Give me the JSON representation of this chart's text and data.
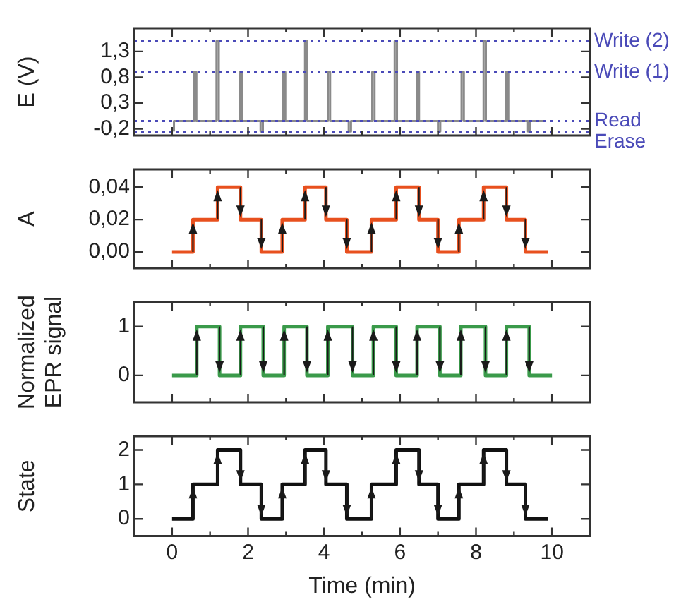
{
  "chart_data": [
    {
      "type": "line",
      "ylabel": "E (V)",
      "xlim": [
        -1,
        11
      ],
      "ylim": [
        -0.33,
        1.75
      ],
      "tick_labels": "y",
      "xticks": [
        0,
        {
          "value": 1,
          "label": null
        },
        2,
        {
          "value": 3,
          "label": null
        },
        4,
        {
          "value": 5,
          "label": null
        },
        6,
        {
          "value": 7,
          "label": null
        },
        8,
        {
          "value": 9,
          "label": null
        },
        10
      ],
      "yticks": [
        {
          "value": -0.2,
          "label": "-0,2"
        },
        {
          "value": 0.3,
          "label": "0,3"
        },
        {
          "value": 0.8,
          "label": "0,8"
        },
        {
          "value": 1.3,
          "label": "1,3"
        }
      ],
      "x": [
        0.05,
        0.05,
        0.58,
        0.58,
        0.64,
        0.64,
        1.17,
        1.17,
        1.23,
        1.23,
        1.78,
        1.78,
        1.84,
        1.84,
        2.33,
        2.33,
        2.39,
        2.39,
        2.92,
        2.92,
        2.98,
        2.98,
        3.5,
        3.5,
        3.56,
        3.56,
        4.1,
        4.1,
        4.16,
        4.16,
        4.65,
        4.65,
        4.71,
        4.71,
        5.27,
        5.27,
        5.33,
        5.33,
        5.86,
        5.86,
        5.92,
        5.92,
        6.44,
        6.44,
        6.5,
        6.5,
        7.0,
        7.0,
        7.06,
        7.06,
        7.62,
        7.62,
        7.68,
        7.68,
        8.2,
        8.2,
        8.26,
        8.26,
        8.79,
        8.79,
        8.85,
        8.85,
        9.37,
        9.37,
        9.43,
        9.43,
        9.84
      ],
      "series": [
        {
          "color": "#8a8a8a",
          "values": [
            -0.25,
            -0.05,
            -0.05,
            0.9,
            0.9,
            -0.05,
            -0.05,
            1.5,
            1.5,
            -0.05,
            -0.05,
            0.9,
            0.9,
            -0.05,
            -0.05,
            -0.25,
            -0.25,
            -0.05,
            -0.05,
            0.9,
            0.9,
            -0.05,
            -0.05,
            1.5,
            1.5,
            -0.05,
            -0.05,
            0.9,
            0.9,
            -0.05,
            -0.05,
            -0.25,
            -0.25,
            -0.05,
            -0.05,
            0.9,
            0.9,
            -0.05,
            -0.05,
            1.5,
            1.5,
            -0.05,
            -0.05,
            0.9,
            0.9,
            -0.05,
            -0.05,
            -0.25,
            -0.25,
            -0.05,
            -0.05,
            0.9,
            0.9,
            -0.05,
            -0.05,
            1.5,
            1.5,
            -0.05,
            -0.05,
            0.9,
            0.9,
            -0.05,
            -0.05,
            -0.25,
            -0.25,
            -0.05,
            -0.05
          ]
        }
      ],
      "ref_lines": [
        {
          "axis": "y",
          "value": 1.5,
          "label": "Write (2)",
          "color": "#4a4ab8",
          "line_style": "dotted"
        },
        {
          "axis": "y",
          "value": 0.9,
          "label": "Write (1)",
          "color": "#4a4ab8",
          "line_style": "dotted"
        },
        {
          "axis": "y",
          "value": -0.05,
          "label": "Read",
          "color": "#4a4ab8",
          "line_style": "dotted"
        },
        {
          "axis": "y",
          "value": -0.27,
          "label": "Erase",
          "color": "#4a4ab8",
          "line_style": "dotted"
        }
      ]
    },
    {
      "type": "step",
      "ylabel": "A",
      "xlim": [
        -1,
        11
      ],
      "ylim": [
        -0.01,
        0.051
      ],
      "tick_labels": "y",
      "xticks": [
        0,
        {
          "value": 1,
          "label": null
        },
        2,
        {
          "value": 3,
          "label": null
        },
        4,
        {
          "value": 5,
          "label": null
        },
        6,
        {
          "value": 7,
          "label": null
        },
        8,
        {
          "value": 9,
          "label": null
        },
        10
      ],
      "yticks": [
        {
          "value": 0,
          "label": "0,00"
        },
        {
          "value": 0.02,
          "label": "0,02"
        },
        {
          "value": 0.04,
          "label": "0,04"
        }
      ],
      "x": [
        0,
        0.55,
        1.2,
        1.8,
        2.35,
        2.9,
        3.5,
        4.05,
        4.6,
        5.25,
        5.9,
        6.5,
        7.0,
        7.55,
        8.2,
        8.8,
        9.3,
        9.9
      ],
      "series": [
        {
          "color": "#e8501e",
          "values": [
            0,
            0.02,
            0.04,
            0.02,
            0,
            0.02,
            0.04,
            0.02,
            0,
            0.02,
            0.04,
            0.02,
            0,
            0.02,
            0.04,
            0.02,
            0,
            0
          ]
        }
      ]
    },
    {
      "type": "step",
      "ylabel": "Normalized EPR signal",
      "xlim": [
        -1,
        11
      ],
      "ylim": [
        -0.55,
        1.5
      ],
      "tick_labels": "y",
      "xticks": [
        0,
        {
          "value": 1,
          "label": null
        },
        2,
        {
          "value": 3,
          "label": null
        },
        4,
        {
          "value": 5,
          "label": null
        },
        6,
        {
          "value": 7,
          "label": null
        },
        8,
        {
          "value": 9,
          "label": null
        },
        10
      ],
      "yticks": [
        0,
        1
      ],
      "x": [
        0,
        0.65,
        1.25,
        1.8,
        2.4,
        2.95,
        3.55,
        4.1,
        4.75,
        5.3,
        5.9,
        6.45,
        7.05,
        7.6,
        8.25,
        8.8,
        9.4,
        10.0
      ],
      "series": [
        {
          "color": "#3a9a4a",
          "values": [
            0,
            1,
            0,
            1,
            0,
            1,
            0,
            1,
            0,
            1,
            0,
            1,
            0,
            1,
            0,
            1,
            0,
            0
          ]
        }
      ]
    },
    {
      "type": "step",
      "ylabel": "State",
      "xlabel": "Time (min)",
      "xlim": [
        -1,
        11
      ],
      "ylim": [
        -0.5,
        2.4
      ],
      "xticks": [
        0,
        {
          "value": 1,
          "label": null
        },
        2,
        {
          "value": 3,
          "label": null
        },
        4,
        {
          "value": 5,
          "label": null
        },
        6,
        {
          "value": 7,
          "label": null
        },
        8,
        {
          "value": 9,
          "label": null
        },
        10
      ],
      "yticks": [
        0,
        1,
        2
      ],
      "x": [
        0,
        0.55,
        1.2,
        1.8,
        2.35,
        2.9,
        3.5,
        4.05,
        4.6,
        5.25,
        5.9,
        6.5,
        7.0,
        7.55,
        8.2,
        8.8,
        9.3,
        9.9
      ],
      "series": [
        {
          "color": "#111111",
          "values": [
            0,
            1,
            2,
            1,
            0,
            1,
            2,
            1,
            0,
            1,
            2,
            1,
            0,
            1,
            2,
            1,
            0,
            0
          ]
        }
      ]
    }
  ]
}
